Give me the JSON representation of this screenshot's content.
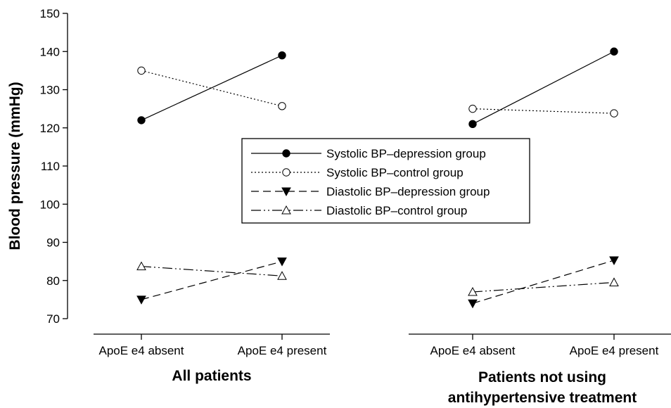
{
  "chart_data": {
    "type": "line",
    "ylabel": "Blood pressure (mmHg)",
    "ylim": [
      70,
      150
    ],
    "yticks": [
      70,
      80,
      90,
      100,
      110,
      120,
      130,
      140,
      150
    ],
    "grid": false,
    "legend_position": "center",
    "categories": [
      "ApoE e4 absent",
      "ApoE e4 present"
    ],
    "panels": [
      {
        "title": "All patients",
        "series": [
          {
            "name": "Systolic BP–depression group",
            "values": [
              122,
              139
            ]
          },
          {
            "name": "Systolic BP–control group",
            "values": [
              135,
              125.7
            ]
          },
          {
            "name": "Diastolic BP–depression group",
            "values": [
              75,
              85
            ]
          },
          {
            "name": "Diastolic BP–control group",
            "values": [
              83.7,
              81.2
            ]
          }
        ]
      },
      {
        "title": "Patients not using antihypertensive treatment",
        "title_lines": [
          "Patients not using",
          "antihypertensive treatment"
        ],
        "series": [
          {
            "name": "Systolic BP–depression group",
            "values": [
              121,
              140
            ]
          },
          {
            "name": "Systolic BP–control group",
            "values": [
              125,
              123.8
            ]
          },
          {
            "name": "Diastolic BP–depression group",
            "values": [
              74,
              85.3
            ]
          },
          {
            "name": "Diastolic BP–control group",
            "values": [
              77,
              79.5
            ]
          }
        ]
      }
    ],
    "series_styles": [
      {
        "line": "solid",
        "marker": "filled-circle"
      },
      {
        "line": "dotted",
        "marker": "open-circle"
      },
      {
        "line": "dashed",
        "marker": "filled-triangle-down"
      },
      {
        "line": "dash-dot-dot",
        "marker": "open-triangle-up"
      }
    ],
    "colors": {
      "ink": "#000000",
      "background": "#ffffff"
    }
  }
}
